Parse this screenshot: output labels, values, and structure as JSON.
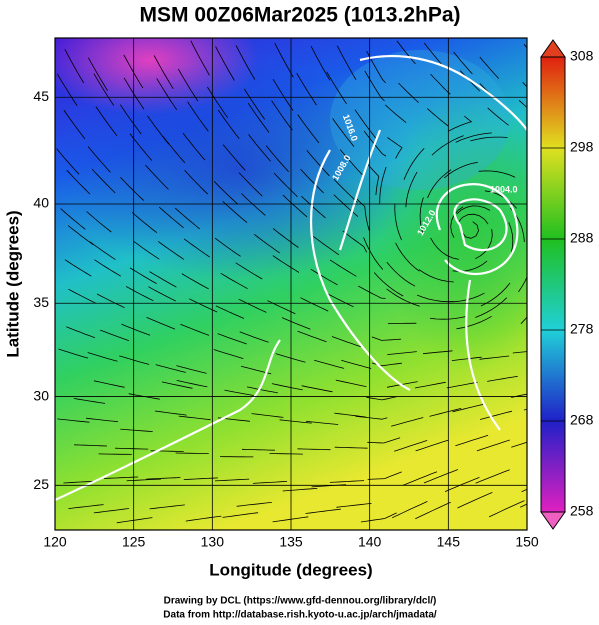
{
  "chart_data": {
    "type": "map",
    "title": "MSM 00Z06Mar2025 (1013.2hPa)",
    "x_label": "Longitude (degrees)",
    "y_label": "Latitude  (degrees)",
    "xlim": [
      120,
      150
    ],
    "ylim": [
      22.4,
      47.6
    ],
    "xticks": [
      120,
      125,
      130,
      135,
      140,
      145,
      150
    ],
    "yticks": [
      25,
      30,
      35,
      40,
      45
    ],
    "colorbar": {
      "lim": [
        258,
        308
      ],
      "ticks": [
        258,
        268,
        278,
        288,
        298,
        308
      ]
    },
    "contour_labels": [
      "1016.0",
      "1012.0",
      "1008.0",
      "1004.0"
    ],
    "credits": [
      "Drawing by DCL (https://www.gfd-dennou.org/library/dcl/)",
      "Data from http://database.rish.kyoto-u.ac.jp/arch/jmadata/"
    ]
  }
}
